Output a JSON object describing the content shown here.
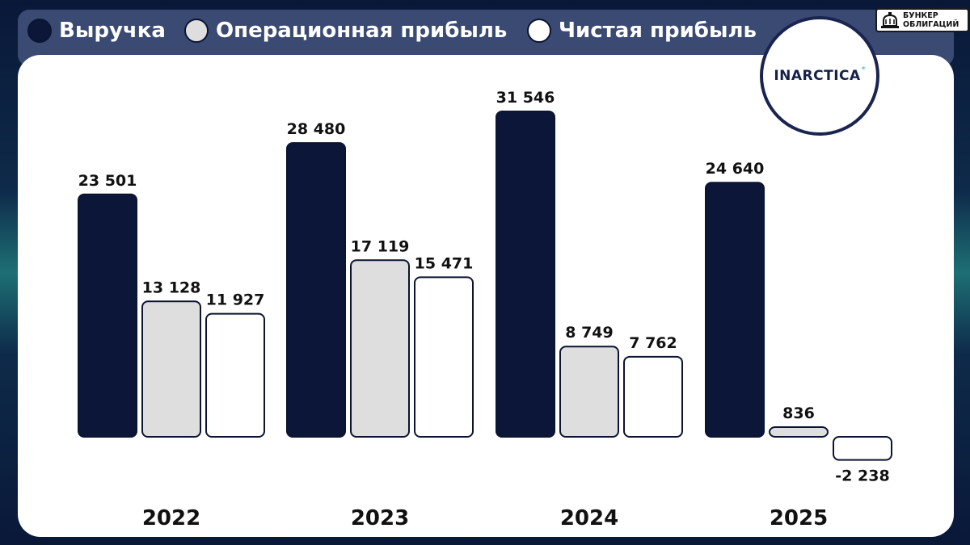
{
  "legend": [
    {
      "label": "Выручка",
      "color": "#0b1638"
    },
    {
      "label": "Операционная прибыль",
      "color": "#dedede"
    },
    {
      "label": "Чистая прибыль",
      "color": "#ffffff"
    }
  ],
  "brand": {
    "line1": "БУНКЕР",
    "line2": "ОБЛИГАЦИЙ",
    "icon": "bell-icon"
  },
  "logo": {
    "text": "INARCTICA",
    "mark": "*"
  },
  "chart_data": {
    "type": "bar",
    "categories": [
      "2022",
      "2023",
      "2024",
      "2025"
    ],
    "series": [
      {
        "name": "Выручка",
        "color": "#0b1638",
        "values": [
          23501,
          28480,
          31546,
          24640
        ],
        "labels": [
          "23 501",
          "28 480",
          "31 546",
          "24 640"
        ]
      },
      {
        "name": "Операционная прибыль",
        "color": "#dedede",
        "values": [
          13128,
          17119,
          8749,
          836
        ],
        "labels": [
          "13 128",
          "17 119",
          "8 749",
          "836"
        ]
      },
      {
        "name": "Чистая прибыль",
        "color": "#ffffff",
        "values": [
          11927,
          15471,
          7762,
          -2238
        ],
        "labels": [
          "11 927",
          "15 471",
          "7 762",
          "-2 238"
        ]
      }
    ],
    "title": "",
    "xlabel": "",
    "ylabel": "",
    "grid": false,
    "legend_position": "top"
  }
}
